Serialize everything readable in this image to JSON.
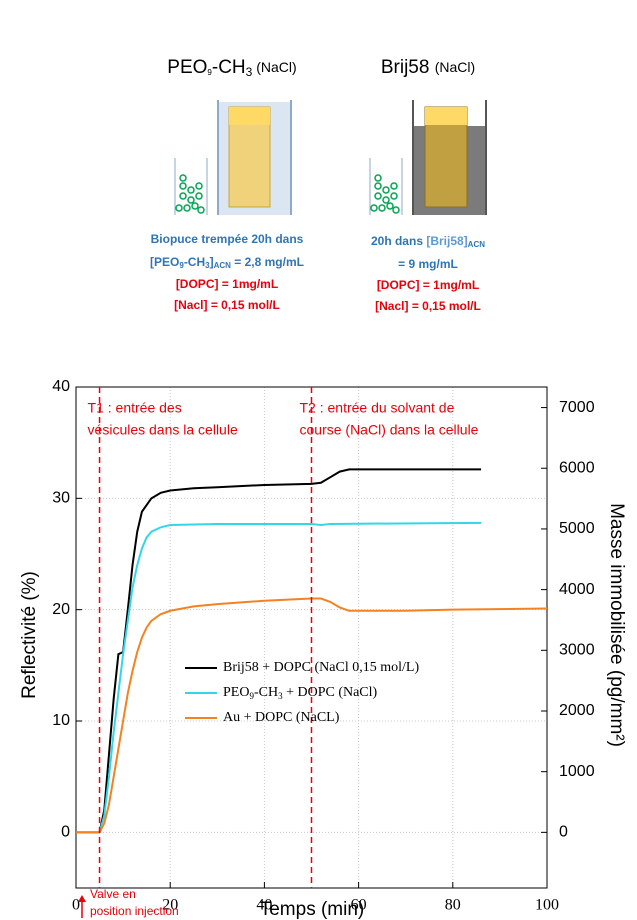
{
  "diagram": {
    "panels": [
      {
        "title": [
          "PEO",
          "9",
          "-CH",
          "3",
          " (NaCl)"
        ],
        "caption": [
          [
            "Biopuce trempée 20h dans"
          ],
          [
            "[PEO",
            "9",
            "-CH",
            "3",
            "]",
            "ACN",
            " = 2,8 mg/mL"
          ],
          [
            "[DOPC] = 1mg/mL"
          ],
          [
            "[Nacl] = 0,15 mol/L"
          ]
        ]
      },
      {
        "title": [
          "Brij58 ",
          "(NaCl)"
        ],
        "caption": [
          [
            "20h dans ",
            "[Brij58]",
            "ACN"
          ],
          [
            "= 9 mg/mL"
          ],
          [
            "[DOPC] = 1mg/mL"
          ],
          [
            "[Nacl] = 0,15 mol/L"
          ]
        ]
      }
    ]
  },
  "chart_data": {
    "type": "line",
    "x_label": "Temps (min)",
    "y_label": "Reflectivité (%)",
    "y2_label": "Masse immobilisée (pg/mm²)",
    "xlim": [
      0,
      100
    ],
    "xticks": [
      0,
      20,
      40,
      60,
      80,
      100
    ],
    "ylim": [
      -5,
      40
    ],
    "yticks": [
      0,
      10,
      20,
      30,
      40
    ],
    "y2lim": [
      -917,
      7339
    ],
    "y2ticks": [
      0,
      1000,
      2000,
      3000,
      4000,
      5000,
      6000,
      7000
    ],
    "grid": true,
    "legend": "lower-center",
    "series": [
      {
        "name": "Brij58 + DOPC (NaCl 0,15 mol/L)",
        "color": "#000000",
        "x": [
          0,
          5,
          6,
          7,
          8,
          9,
          10,
          11,
          12,
          13,
          14,
          16,
          18,
          20,
          25,
          30,
          40,
          50,
          52,
          54,
          56,
          58,
          60,
          70,
          86
        ],
        "values": [
          0,
          0,
          2,
          7,
          12,
          16,
          16.2,
          20,
          24,
          27,
          28.8,
          30,
          30.5,
          30.7,
          30.9,
          31,
          31.2,
          31.3,
          31.4,
          31.9,
          32.4,
          32.6,
          32.6,
          32.6,
          32.6
        ]
      },
      {
        "name": [
          "PEO",
          "9",
          "-CH",
          "3",
          " + DOPC (NaCl)"
        ],
        "color": "#33d6e8",
        "x": [
          0,
          5,
          6,
          7,
          8,
          9,
          10,
          11,
          12,
          13,
          14,
          15,
          16,
          18,
          20,
          30,
          50,
          52,
          54,
          86
        ],
        "values": [
          0,
          0,
          1.5,
          5,
          9,
          12.5,
          16,
          19,
          22,
          24,
          25.5,
          26.5,
          27,
          27.4,
          27.6,
          27.7,
          27.7,
          27.6,
          27.7,
          27.8
        ]
      },
      {
        "name": "Au + DOPC (NaCL)",
        "color": "#f58220",
        "x": [
          0,
          5,
          6,
          7,
          8,
          9,
          10,
          11,
          12,
          13,
          14,
          15,
          16,
          18,
          20,
          25,
          30,
          40,
          50,
          52,
          54,
          56,
          58,
          60,
          70,
          80,
          100
        ],
        "values": [
          0,
          0,
          0.8,
          2.5,
          5,
          7.5,
          10,
          12.5,
          14.5,
          16.2,
          17.5,
          18.4,
          19,
          19.6,
          19.9,
          20.3,
          20.5,
          20.8,
          21,
          21,
          20.7,
          20.2,
          19.9,
          19.9,
          19.9,
          20,
          20.1
        ]
      }
    ],
    "annotations": [
      {
        "text": [
          "T1 : entrée des",
          "vésicules dans la cellule"
        ],
        "x": 5
      },
      {
        "text": [
          "T2 : entrée du solvant de",
          "course (NaCl) dans la cellule"
        ],
        "x": 50
      },
      {
        "text": [
          "Valve en",
          "position injection"
        ],
        "x": 0
      }
    ]
  }
}
